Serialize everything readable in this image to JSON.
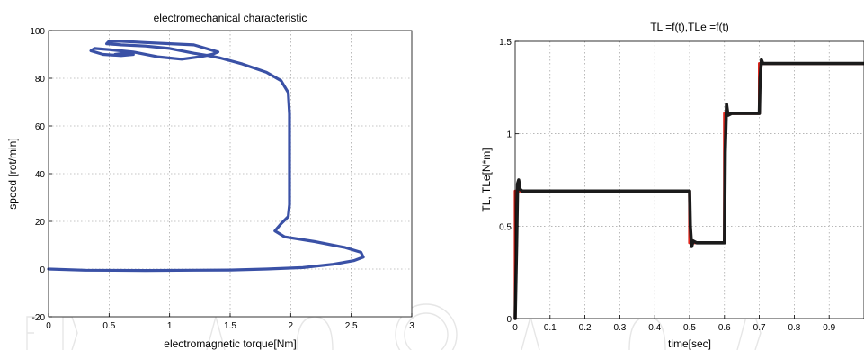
{
  "chart_data": [
    {
      "type": "line",
      "title": "electromechanical characteristic",
      "xlabel": "electromagnetic torque[Nm]",
      "ylabel": "speed [rot/min]",
      "xlim": [
        0,
        3
      ],
      "ylim": [
        -20,
        100
      ],
      "xticks": [
        0,
        0.5,
        1,
        1.5,
        2,
        2.5,
        3
      ],
      "yticks": [
        -20,
        0,
        20,
        40,
        60,
        80,
        100
      ],
      "xtick_labels": [
        "0",
        "0.5",
        "1",
        "1.5",
        "2",
        "2.5",
        "3"
      ],
      "ytick_labels": [
        "-20",
        "0",
        "20",
        "40",
        "60",
        "80",
        "100"
      ],
      "grid": true,
      "series": [
        {
          "color": "#3a51a6",
          "x": [
            0,
            0.3,
            0.8,
            1.2,
            1.5,
            1.8,
            2.1,
            2.35,
            2.52,
            2.6,
            2.58,
            2.45,
            2.2,
            1.95,
            1.87,
            1.92,
            1.98,
            1.99,
            1.99,
            1.99,
            1.99,
            1.99,
            1.98,
            1.92,
            1.8,
            1.6,
            1.42,
            1.32,
            1.2,
            1.0,
            0.8,
            0.6,
            0.48,
            0.5,
            0.6,
            0.8,
            1.0,
            1.2,
            1.4,
            1.35,
            1.25,
            1.1,
            0.9,
            0.7,
            0.5,
            0.38,
            0.35,
            0.45,
            0.6,
            0.7,
            0.62,
            0.55
          ],
          "y": [
            0,
            -0.5,
            -0.6,
            -0.5,
            -0.4,
            0,
            0.6,
            2,
            3.5,
            5,
            7,
            9,
            11.5,
            13.5,
            16,
            19,
            22,
            27,
            35,
            45,
            55,
            65,
            74,
            79,
            82.5,
            86,
            88.5,
            89.5,
            90.5,
            92.5,
            93.5,
            94,
            94.5,
            95.5,
            95.5,
            95,
            94.5,
            94,
            91,
            90,
            89,
            88,
            89,
            91,
            92,
            92.5,
            91.5,
            90,
            89.5,
            90,
            90.5,
            90
          ]
        }
      ]
    },
    {
      "type": "line",
      "title": "TL =f(t),TLe =f(t)",
      "xlabel": "time[sec]",
      "ylabel": "TL, TLe[N*m]",
      "xlim": [
        0,
        1
      ],
      "ylim": [
        0,
        1.5
      ],
      "xticks": [
        0,
        0.1,
        0.2,
        0.3,
        0.4,
        0.5,
        0.6,
        0.7,
        0.8,
        0.9
      ],
      "yticks": [
        0,
        0.5,
        1,
        1.5
      ],
      "xtick_labels": [
        "0",
        "0.1",
        "0.2",
        "0.3",
        "0.4",
        "0.5",
        "0.6",
        "0.7",
        "0.8",
        "0.9"
      ],
      "ytick_labels": [
        "0",
        "0.5",
        "1",
        "1.5"
      ],
      "grid": true,
      "series": [
        {
          "color": "#e0251b",
          "x": [
            0,
            0.0,
            0.5,
            0.5,
            0.6,
            0.6,
            0.7,
            0.7,
            1.0
          ],
          "y": [
            0,
            0.69,
            0.69,
            0.41,
            0.41,
            1.11,
            1.11,
            1.38,
            1.38
          ]
        },
        {
          "color": "#1b1b1b",
          "x": [
            0.0,
            0.004,
            0.007,
            0.01,
            0.014,
            0.02,
            0.03,
            0.5,
            0.502,
            0.506,
            0.51,
            0.52,
            0.6,
            0.602,
            0.606,
            0.61,
            0.62,
            0.7,
            0.702,
            0.706,
            0.71,
            0.72,
            1.0
          ],
          "y": [
            0.0,
            0.4,
            0.73,
            0.75,
            0.7,
            0.69,
            0.69,
            0.69,
            0.5,
            0.39,
            0.42,
            0.41,
            0.41,
            0.9,
            1.16,
            1.1,
            1.11,
            1.11,
            1.3,
            1.4,
            1.38,
            1.38,
            1.38
          ]
        }
      ]
    }
  ]
}
